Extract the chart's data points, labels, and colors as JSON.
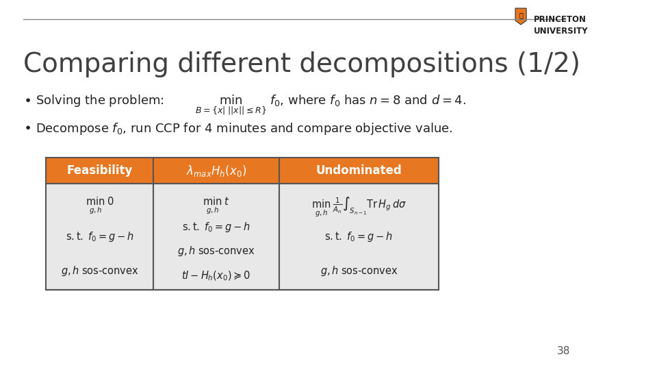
{
  "title": "Comparing different decompositions (1/2)",
  "title_fontsize": 28,
  "background_color": "#ffffff",
  "slide_number": "38",
  "top_line_color": "#e0e0e0",
  "orange_color": "#E87722",
  "header_text_color": "#ffffff",
  "cell_bg_color": "#e8e8e8",
  "table_border_color": "#555555",
  "col_headers": [
    "Feasibility",
    "$\\lambda_{max}H_h(x_0)$",
    "Undominated"
  ],
  "bullet1": "Solving the problem:",
  "bullet2": "Decompose $f_0$, run CCP for 4 minutes and compare objective value.",
  "col1_content": "$\\underset{g,h}{\\min}\\; 0$\n\ns.t. $f_0 = g - h$\n\n$g, h$ sos-convex",
  "col2_content": "$\\underset{g,h}{\\min}\\; t$\n\ns.t. $f_0 = g - h$\n\n$g, h$ sos-convex\n\n$tI - H_h(x_0) \\succeq 0$",
  "col3_content": "$\\underset{g,h}{\\min}\\; \\frac{1}{A_n}\\int_{S_{n-1}} \\mathrm{Tr}\\, H_g\\, d\\sigma$\n\ns.t. $f_0 = g - h$\n\n$g, h$ sos-convex"
}
